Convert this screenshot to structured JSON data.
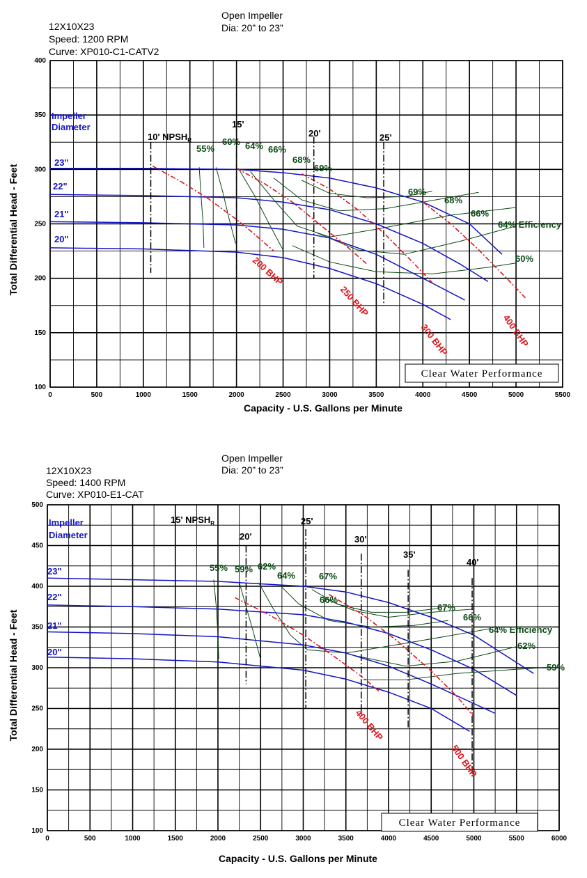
{
  "colors": {
    "head_curve": "#1414c8",
    "bhp_curve": "#e0141a",
    "efficiency_curve": "#0b4a14",
    "npsh_line": "#000000",
    "grid": "#000000"
  },
  "charts": [
    {
      "model": "12X10X23",
      "speed": "Speed: 1200 RPM",
      "curve": "Curve: XP010-C1-CATV2",
      "impeller": "Open Impeller",
      "dia_range": "Dia: 20” to 23”",
      "impeller_label_1": "Impeller",
      "impeller_label_2": "Diameter",
      "badge": "Clear Water Performance",
      "xlabel": "Capacity - U.S. Gallons per Minute",
      "ylabel": "Total Differential Head - Feet",
      "npsh_label": "10' NPSH",
      "npsh_sub": "R",
      "efficiency_suffix": " Efficiency"
    },
    {
      "model": "12X10X23",
      "speed": "Speed: 1400 RPM",
      "curve": "Curve: XP010-E1-CAT",
      "impeller": "Open Impeller",
      "dia_range": "Dia: 20” to 23”",
      "impeller_label_1": "Impeller",
      "impeller_label_2": "Diameter",
      "badge": "Clear Water Performance",
      "xlabel": "Capacity - U.S. Gallons per Minute",
      "ylabel": "Total Differential Head - Feet",
      "npsh_label": "15' NPSH",
      "npsh_sub": "R",
      "efficiency_suffix": " Efficiency"
    }
  ],
  "chart_data": [
    {
      "type": "line",
      "xlim": [
        0,
        5500
      ],
      "ylim": [
        100,
        400
      ],
      "xticks": [
        0,
        500,
        1000,
        1500,
        2000,
        2500,
        3000,
        3500,
        4000,
        4500,
        5000,
        5500
      ],
      "yticks": [
        100,
        150,
        200,
        250,
        300,
        350,
        400
      ],
      "grid": true,
      "head_curves": [
        {
          "name": "23\"",
          "points": [
            [
              0,
              301
            ],
            [
              1000,
              301
            ],
            [
              2000,
              300
            ],
            [
              2500,
              297
            ],
            [
              3000,
              292
            ],
            [
              3500,
              283
            ],
            [
              4000,
              270
            ],
            [
              4500,
              250
            ],
            [
              4850,
              222
            ]
          ]
        },
        {
          "name": "22\"",
          "points": [
            [
              0,
              277
            ],
            [
              1000,
              276
            ],
            [
              2000,
              274
            ],
            [
              2500,
              270
            ],
            [
              3000,
              263
            ],
            [
              3500,
              250
            ],
            [
              4000,
              232
            ],
            [
              4400,
              213
            ],
            [
              4700,
              197
            ]
          ]
        },
        {
          "name": "21\"",
          "points": [
            [
              0,
              252
            ],
            [
              1000,
              251
            ],
            [
              2000,
              249
            ],
            [
              2500,
              245
            ],
            [
              3000,
              237
            ],
            [
              3500,
              222
            ],
            [
              4000,
              200
            ],
            [
              4450,
              180
            ]
          ]
        },
        {
          "name": "20\"",
          "points": [
            [
              0,
              228
            ],
            [
              1000,
              227
            ],
            [
              2000,
              224
            ],
            [
              2500,
              219
            ],
            [
              3000,
              209
            ],
            [
              3500,
              195
            ],
            [
              4000,
              176
            ],
            [
              4300,
              162
            ]
          ]
        }
      ],
      "bhp_curves": [
        {
          "name": "200 BHP",
          "points": [
            [
              1100,
              303
            ],
            [
              1400,
              289
            ],
            [
              1700,
              273
            ],
            [
              2000,
              254
            ],
            [
              2200,
              240
            ],
            [
              2400,
              225
            ]
          ]
        },
        {
          "name": "250 BHP",
          "points": [
            [
              2000,
              301
            ],
            [
              2300,
              287
            ],
            [
              2600,
              270
            ],
            [
              2900,
              249
            ],
            [
              3200,
              228
            ],
            [
              3400,
              213
            ]
          ]
        },
        {
          "name": "300 BHP",
          "points": [
            [
              2700,
              296
            ],
            [
              3000,
              282
            ],
            [
              3300,
              263
            ],
            [
              3600,
              240
            ],
            [
              3900,
              214
            ],
            [
              4100,
              196
            ]
          ]
        },
        {
          "name": "400 BHP",
          "points": [
            [
              4000,
              270
            ],
            [
              4300,
              250
            ],
            [
              4600,
              226
            ],
            [
              4900,
              200
            ],
            [
              5100,
              182
            ]
          ]
        }
      ],
      "efficiency_labels": [
        "55%",
        "60%",
        "64%",
        "66%",
        "68%",
        "69%",
        "69%",
        "68%",
        "66%",
        "64%",
        "60%"
      ],
      "efficiency_contours": [
        {
          "name": "55%",
          "points": [
            [
              1600,
              302
            ],
            [
              1620,
              275
            ],
            [
              1640,
              252
            ],
            [
              1650,
              228
            ]
          ]
        },
        {
          "name": "60%",
          "points": [
            [
              1780,
              302
            ],
            [
              1850,
              280
            ],
            [
              1920,
              255
            ],
            [
              1990,
              232
            ]
          ]
        },
        {
          "name": "64%",
          "points": [
            [
              2020,
              301
            ],
            [
              2200,
              275
            ],
            [
              2350,
              250
            ],
            [
              2500,
              226
            ]
          ]
        },
        {
          "name": "66%",
          "points": [
            [
              2150,
              298
            ],
            [
              2400,
              272
            ],
            [
              2650,
              248
            ],
            [
              3000,
              238
            ],
            [
              3500,
              245
            ],
            [
              4300,
              258
            ],
            [
              5000,
              265
            ]
          ]
        },
        {
          "name": "68%",
          "points": [
            [
              2400,
              292
            ],
            [
              2700,
              272
            ],
            [
              3100,
              262
            ],
            [
              3600,
              264
            ],
            [
              4000,
              270
            ],
            [
              4600,
              279
            ]
          ]
        },
        {
          "name": "69%",
          "points": [
            [
              2700,
              290
            ],
            [
              3000,
              278
            ],
            [
              3400,
              274
            ],
            [
              3800,
              275
            ],
            [
              4100,
              280
            ]
          ]
        },
        {
          "name": "60%",
          "points": [
            [
              2600,
              230
            ],
            [
              3000,
              215
            ],
            [
              3500,
              206
            ],
            [
              4100,
              204
            ],
            [
              4700,
              210
            ],
            [
              5000,
              214
            ]
          ]
        },
        {
          "name": "64%",
          "points": [
            [
              2800,
              244
            ],
            [
              3300,
              226
            ],
            [
              3800,
              222
            ],
            [
              4400,
              234
            ],
            [
              5000,
              248
            ]
          ]
        }
      ],
      "npsh_lines": [
        {
          "label": "10' NPSH",
          "x": 1080,
          "ymin": 205,
          "ymax": 325
        },
        {
          "label": "15'",
          "x": 2000,
          "ymin": 200,
          "ymax": 340
        },
        {
          "label": "20'",
          "x": 2830,
          "ymin": 200,
          "ymax": 330
        },
        {
          "label": "25'",
          "x": 3580,
          "ymin": 175,
          "ymax": 325
        }
      ]
    },
    {
      "type": "line",
      "xlim": [
        0,
        6000
      ],
      "ylim": [
        100,
        500
      ],
      "xticks": [
        0,
        500,
        1000,
        1500,
        2000,
        2500,
        3000,
        3500,
        4000,
        4500,
        5000,
        5500,
        6000
      ],
      "yticks": [
        100,
        150,
        200,
        250,
        300,
        350,
        400,
        450,
        500
      ],
      "grid": true,
      "head_curves": [
        {
          "name": "23\"",
          "points": [
            [
              0,
              410
            ],
            [
              1000,
              408
            ],
            [
              2000,
              406
            ],
            [
              3000,
              400
            ],
            [
              3500,
              393
            ],
            [
              4000,
              380
            ],
            [
              4500,
              362
            ],
            [
              5000,
              340
            ],
            [
              5700,
              293
            ]
          ]
        },
        {
          "name": "22\"",
          "points": [
            [
              0,
              377
            ],
            [
              1000,
              375
            ],
            [
              2000,
              372
            ],
            [
              3000,
              365
            ],
            [
              3500,
              356
            ],
            [
              4000,
              342
            ],
            [
              4500,
              322
            ],
            [
              5000,
              298
            ],
            [
              5500,
              266
            ]
          ]
        },
        {
          "name": "21\"",
          "points": [
            [
              0,
              344
            ],
            [
              1000,
              342
            ],
            [
              2000,
              338
            ],
            [
              3000,
              328
            ],
            [
              3500,
              318
            ],
            [
              4000,
              302
            ],
            [
              4500,
              280
            ],
            [
              5000,
              256
            ],
            [
              5250,
              244
            ]
          ]
        },
        {
          "name": "20\"",
          "points": [
            [
              0,
              313
            ],
            [
              1000,
              311
            ],
            [
              2000,
              307
            ],
            [
              3000,
              297
            ],
            [
              3500,
              286
            ],
            [
              4000,
              270
            ],
            [
              4500,
              250
            ],
            [
              4950,
              222
            ]
          ]
        }
      ],
      "bhp_curves": [
        {
          "name": "400 BHP",
          "points": [
            [
              2200,
              386
            ],
            [
              2600,
              365
            ],
            [
              3000,
              340
            ],
            [
              3400,
              311
            ],
            [
              3700,
              288
            ],
            [
              3900,
              270
            ]
          ]
        },
        {
          "name": "500 BHP",
          "points": [
            [
              3300,
              390
            ],
            [
              3700,
              365
            ],
            [
              4100,
              333
            ],
            [
              4500,
              296
            ],
            [
              4800,
              265
            ],
            [
              5000,
              240
            ]
          ]
        }
      ],
      "efficiency_labels": [
        "55%",
        "59%",
        "62%",
        "64%",
        "67%",
        "66%",
        "67%",
        "66%",
        "64%",
        "62%",
        "59%"
      ],
      "efficiency_contours": [
        {
          "name": "55%",
          "points": [
            [
              1950,
              408
            ],
            [
              1980,
              375
            ],
            [
              2000,
              340
            ],
            [
              2010,
              311
            ]
          ]
        },
        {
          "name": "59%",
          "points": [
            [
              2250,
              405
            ],
            [
              2330,
              375
            ],
            [
              2420,
              342
            ],
            [
              2500,
              310
            ]
          ]
        },
        {
          "name": "62%",
          "points": [
            [
              2480,
              404
            ],
            [
              2650,
              372
            ],
            [
              2850,
              340
            ],
            [
              3050,
              322
            ],
            [
              3500,
              318
            ],
            [
              4200,
              330
            ],
            [
              5200,
              348
            ]
          ]
        },
        {
          "name": "64%",
          "points": [
            [
              2720,
              402
            ],
            [
              2950,
              378
            ],
            [
              3300,
              358
            ],
            [
              3800,
              350
            ],
            [
              4300,
              352
            ],
            [
              4700,
              358
            ]
          ]
        },
        {
          "name": "67%",
          "points": [
            [
              3100,
              396
            ],
            [
              3400,
              378
            ],
            [
              3800,
              368
            ],
            [
              4200,
              368
            ],
            [
              4600,
              373
            ]
          ]
        },
        {
          "name": "66%",
          "points": [
            [
              3200,
              387
            ],
            [
              3600,
              370
            ],
            [
              4000,
              362
            ],
            [
              4500,
              368
            ],
            [
              5000,
              372
            ]
          ]
        },
        {
          "name": "59%",
          "points": [
            [
              3700,
              285
            ],
            [
              4200,
              285
            ],
            [
              4800,
              293
            ],
            [
              5500,
              298
            ],
            [
              5800,
              300
            ]
          ]
        },
        {
          "name": "62%",
          "points": [
            [
              3600,
              315
            ],
            [
              4200,
              302
            ],
            [
              4800,
              308
            ],
            [
              5200,
              318
            ],
            [
              5500,
              326
            ]
          ]
        }
      ],
      "npsh_lines": [
        {
          "label": "15' NPSH",
          "x": 1500,
          "ymin": 270,
          "ymax": 480
        },
        {
          "label": "20'",
          "x": 2330,
          "ymin": 280,
          "ymax": 450
        },
        {
          "label": "25'",
          "x": 3030,
          "ymin": 250,
          "ymax": 470
        },
        {
          "label": "30'",
          "x": 3680,
          "ymin": 240,
          "ymax": 440
        },
        {
          "label": "35'",
          "x": 4230,
          "ymin": 225,
          "ymax": 420
        },
        {
          "label": "40'",
          "x": 4980,
          "ymin": 165,
          "ymax": 410
        }
      ]
    }
  ]
}
